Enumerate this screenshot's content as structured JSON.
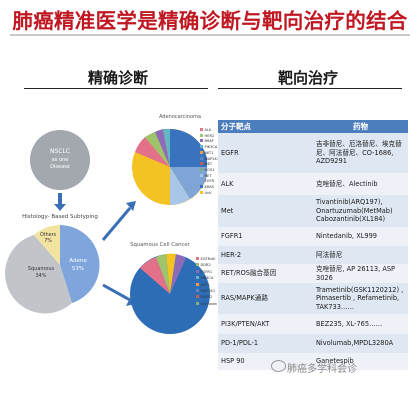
{
  "title": "肺癌精准医学是精确诊断与靶向治疗的结合",
  "left_heading": "精确诊断",
  "right_heading": "靶向治疗",
  "diagram": {
    "start_label_1": "NSCLC",
    "start_label_2": "as one",
    "start_label_3": "Disease",
    "histology_label": "Histology- Based Subtyping",
    "subtype_adeno": "Adeno",
    "subtype_adeno_pct": "53%",
    "subtype_squamous": "Squamous",
    "subtype_squamous_pct": "34%",
    "subtype_others": "Others",
    "subtype_others_pct": "7%",
    "adeno_title": "Adenocarcinoma",
    "adeno_legend": [
      "ALK",
      "HER2",
      "BRAF",
      "PIK3CA",
      "AKT1",
      "MAP2K1",
      "MET",
      "ROS1",
      "RET",
      "EGFR",
      "KRAS",
      "Unk"
    ],
    "squamous_title": "Squamous Cell Cancer",
    "squamous_legend": [
      "EGFRvIII",
      "DDR2",
      "FGFR1",
      "PIK3CA",
      "AKT1",
      "MAP2K1",
      "FGFR2",
      "Unknown"
    ],
    "colors": {
      "nsclc": "#a3a8ae",
      "adeno": "#7ea6dc",
      "squamous": "#c1c5ca",
      "others": "#f3e3a1",
      "arrow": "#3b6fb5",
      "sq_main": "#2d6db6",
      "adeno_main": "#f3c324"
    }
  },
  "table": {
    "header_target": "分子靶点",
    "header_drug": "药物",
    "rows": [
      {
        "target": "EGFR",
        "drug": "吉非替尼、厄洛替尼、埃克替尼、阿法替尼、CO-1686, AZD9291"
      },
      {
        "target": "ALK",
        "drug": "克唑替尼、Alectinib"
      },
      {
        "target": "Met",
        "drug": "Tivantinib(ARQ197), Onartuzumab(MetMab) Cabozantinib(XL184)"
      },
      {
        "target": "FGFR1",
        "drug": "Nintedanib, XL999"
      },
      {
        "target": "HER-2",
        "drug": "阿法替尼"
      },
      {
        "target": "RET/ROS融合基因",
        "drug": "克唑替尼, AP 26113, ASP 3026"
      },
      {
        "target": "RAS/MAPK通路",
        "drug": "Trametinib(GSK1120212) , Pimasertib , Refametinib, TAK733……"
      },
      {
        "target": "PI3K/PTEN/AKT",
        "drug": "BEZ235, XL-765……"
      },
      {
        "target": "PD-1/PDL-1",
        "drug": "Nivolumab,MPDL3280A"
      },
      {
        "target": "HSP 90",
        "drug": "Ganetespib"
      }
    ]
  },
  "watermark": "肺癌多学科会诊"
}
